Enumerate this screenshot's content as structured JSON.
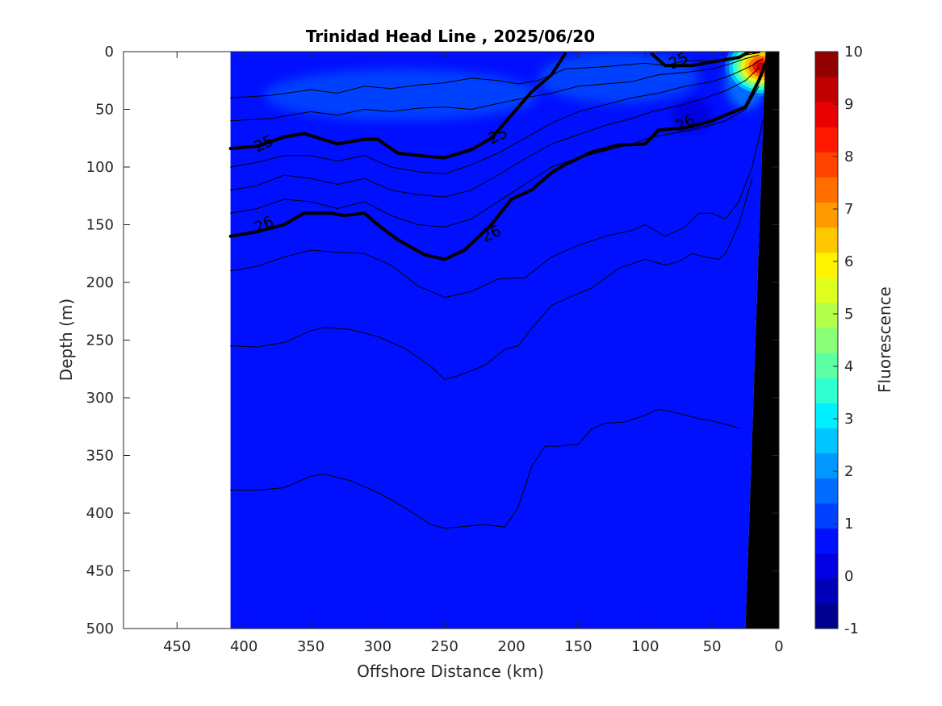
{
  "chart_data": {
    "type": "heatmap",
    "title": "Trinidad Head Line , 2025/06/20",
    "xlabel": "Offshore Distance (km)",
    "ylabel": "Depth (m)",
    "xlim": [
      490,
      0
    ],
    "ylim": [
      0,
      500
    ],
    "x_reversed": true,
    "y_reversed": true,
    "x_ticks": [
      450,
      400,
      350,
      300,
      250,
      200,
      150,
      100,
      50,
      0
    ],
    "y_ticks": [
      0,
      50,
      100,
      150,
      200,
      250,
      300,
      350,
      400,
      450,
      500
    ],
    "colorbar": {
      "label": "Fluorescence",
      "range": [
        -1,
        10
      ],
      "ticks": [
        -1,
        0,
        1,
        2,
        3,
        4,
        5,
        6,
        7,
        8,
        9,
        10
      ],
      "colors": [
        "#00008f",
        "#0000b9",
        "#0000e3",
        "#0010ff",
        "#0040ff",
        "#006cff",
        "#0098ff",
        "#00c4ff",
        "#00f0ff",
        "#30ffcf",
        "#5cffa3",
        "#88ff77",
        "#b4ff4b",
        "#e0ff1f",
        "#fff300",
        "#ffc700",
        "#ff9b00",
        "#ff6f00",
        "#ff4300",
        "#ff1700",
        "#e90000",
        "#bf0000",
        "#930000"
      ]
    },
    "data_extent": {
      "x_max": 410,
      "x_min_at_bottom": 25,
      "x_min_at_top": 10
    },
    "field": {
      "background_value": 0.5,
      "patches": [
        {
          "value": 1.0,
          "x": [
            385,
            180
          ],
          "y": [
            15,
            60
          ]
        },
        {
          "value": 1.0,
          "x": [
            180,
            60
          ],
          "y": [
            0,
            45
          ]
        },
        {
          "value": 1.5,
          "x": [
            40,
            10
          ],
          "y": [
            0,
            50
          ]
        },
        {
          "value": 0.3,
          "x": [
            80,
            50
          ],
          "y": [
            40,
            70
          ]
        }
      ],
      "surface_max": {
        "x": 12,
        "depth": 10,
        "value": 9.5
      }
    },
    "density_contours": [
      {
        "sigma": 25,
        "bold": true,
        "x": [
          410,
          390,
          370,
          355,
          330,
          310,
          300,
          285,
          270,
          250,
          230,
          215,
          200,
          185,
          170,
          160
        ],
        "depth": [
          84,
          82,
          74,
          71,
          80,
          76,
          76,
          88,
          90,
          92,
          85,
          75,
          55,
          35,
          20,
          2
        ]
      },
      {
        "sigma": 25,
        "bold": true,
        "x": [
          95,
          85,
          65,
          55,
          45,
          30,
          22,
          18,
          15
        ],
        "depth": [
          2,
          12,
          12,
          10,
          8,
          5,
          0,
          0,
          0
        ]
      },
      {
        "sigma": 26,
        "bold": true,
        "x": [
          410,
          390,
          370,
          355,
          335,
          325,
          310,
          300,
          285,
          265,
          250,
          235,
          215,
          200,
          185,
          170,
          160,
          140,
          120,
          100,
          90,
          70,
          50,
          40,
          25,
          15,
          10
        ],
        "depth": [
          160,
          156,
          150,
          140,
          140,
          142,
          140,
          150,
          163,
          176,
          180,
          172,
          150,
          128,
          120,
          105,
          98,
          87,
          81,
          80,
          68,
          66,
          60,
          55,
          48,
          25,
          10
        ]
      },
      {
        "sigma": 25.2,
        "bold": false,
        "x": [
          410,
          380,
          350,
          330,
          310,
          290,
          270,
          250,
          230,
          210,
          195,
          180,
          160,
          130,
          100,
          85,
          70,
          50,
          35,
          25,
          15
        ],
        "depth": [
          40,
          38,
          33,
          36,
          30,
          32,
          29,
          27,
          23,
          25,
          28,
          25,
          15,
          13,
          10,
          12,
          8,
          8,
          5,
          3,
          1
        ]
      },
      {
        "sigma": 25.4,
        "bold": false,
        "x": [
          410,
          380,
          350,
          330,
          310,
          290,
          270,
          250,
          230,
          210,
          190,
          170,
          150,
          130,
          110,
          90,
          70,
          50,
          35,
          25,
          15
        ],
        "depth": [
          60,
          58,
          52,
          55,
          50,
          52,
          49,
          48,
          50,
          45,
          40,
          36,
          30,
          28,
          26,
          20,
          18,
          15,
          10,
          6,
          3
        ]
      },
      {
        "sigma": 25.6,
        "bold": false,
        "x": [
          410,
          390,
          370,
          350,
          330,
          310,
          290,
          270,
          250,
          230,
          210,
          190,
          170,
          150,
          130,
          110,
          90,
          70,
          50,
          35,
          20,
          12
        ],
        "depth": [
          100,
          96,
          90,
          90,
          95,
          90,
          100,
          104,
          106,
          98,
          88,
          75,
          62,
          52,
          46,
          40,
          36,
          30,
          26,
          20,
          12,
          6
        ]
      },
      {
        "sigma": 25.8,
        "bold": false,
        "x": [
          410,
          390,
          370,
          350,
          330,
          310,
          290,
          270,
          250,
          230,
          210,
          190,
          170,
          150,
          130,
          110,
          95,
          75,
          55,
          40,
          25,
          15
        ],
        "depth": [
          120,
          116,
          107,
          110,
          115,
          110,
          120,
          124,
          126,
          120,
          107,
          93,
          80,
          72,
          64,
          58,
          52,
          47,
          40,
          34,
          25,
          14
        ]
      },
      {
        "sigma": 25.9,
        "bold": false,
        "x": [
          410,
          390,
          370,
          350,
          330,
          310,
          290,
          270,
          250,
          230,
          210,
          190,
          170,
          150,
          130,
          110,
          95,
          75,
          55,
          40,
          25,
          15
        ],
        "depth": [
          140,
          136,
          128,
          130,
          136,
          130,
          142,
          150,
          152,
          145,
          130,
          115,
          100,
          92,
          86,
          80,
          74,
          70,
          65,
          60,
          50,
          30
        ]
      },
      {
        "sigma": 26.2,
        "bold": false,
        "x": [
          410,
          390,
          370,
          350,
          330,
          310,
          290,
          270,
          250,
          230,
          210,
          190,
          170,
          150,
          130,
          110,
          100,
          85,
          70,
          60,
          50,
          40,
          30,
          20,
          12
        ],
        "depth": [
          190,
          186,
          178,
          172,
          174,
          175,
          185,
          203,
          213,
          208,
          197,
          196,
          178,
          168,
          160,
          155,
          150,
          160,
          152,
          140,
          140,
          145,
          130,
          100,
          60
        ]
      },
      {
        "sigma": 26.4,
        "bold": false,
        "x": [
          410,
          390,
          370,
          350,
          340,
          320,
          300,
          280,
          260,
          250,
          240,
          220,
          205,
          195,
          185,
          170,
          155,
          140,
          120,
          100,
          85,
          75,
          65,
          55,
          45,
          40,
          30,
          20
        ],
        "depth": [
          255,
          256,
          252,
          242,
          239,
          241,
          247,
          257,
          273,
          284,
          281,
          272,
          258,
          255,
          240,
          220,
          212,
          205,
          188,
          180,
          185,
          182,
          175,
          178,
          180,
          175,
          150,
          110
        ]
      },
      {
        "sigma": 26.6,
        "bold": false,
        "x": [
          410,
          390,
          370,
          350,
          340,
          320,
          300,
          280,
          260,
          250,
          240,
          220,
          205,
          195,
          185,
          175,
          165,
          150,
          140,
          130,
          115,
          100,
          90,
          80,
          70,
          60,
          50,
          40,
          30
        ],
        "depth": [
          380,
          380,
          378,
          368,
          366,
          372,
          382,
          395,
          410,
          413,
          412,
          410,
          412,
          395,
          360,
          342,
          342,
          340,
          327,
          322,
          321,
          315,
          310,
          312,
          315,
          318,
          320,
          323,
          326
        ]
      }
    ],
    "contour_labels": [
      {
        "text": "25",
        "x": 385,
        "depth": 80
      },
      {
        "text": "25",
        "x": 210,
        "depth": 73
      },
      {
        "text": "25",
        "x": 75,
        "depth": 8
      },
      {
        "text": "26",
        "x": 385,
        "depth": 150
      },
      {
        "text": "26",
        "x": 215,
        "depth": 158
      },
      {
        "text": "26",
        "x": 70,
        "depth": 62
      }
    ],
    "bathymetry": {
      "fill": "#000000",
      "points": [
        [
          25,
          500
        ],
        [
          10,
          0
        ],
        [
          0,
          0
        ],
        [
          0,
          500
        ]
      ]
    }
  }
}
